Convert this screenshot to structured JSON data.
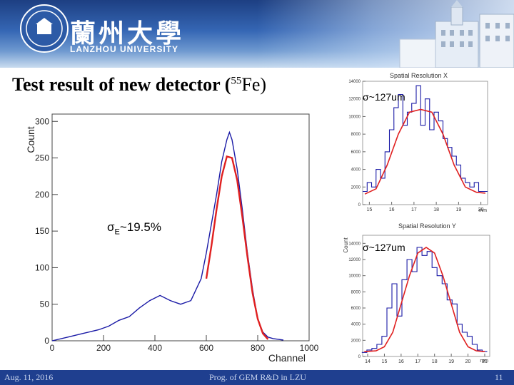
{
  "header": {
    "university_cn": "蘭州大學",
    "university_en": "LANZHOU UNIVERSITY"
  },
  "slide": {
    "title_text": "Test result of new detector (",
    "title_iso_sup": "55",
    "title_iso_elem": "Fe)"
  },
  "spectrum": {
    "ylabel": "Count",
    "xlabel": "Channel",
    "resolution_label": "σ",
    "resolution_sub": "E",
    "resolution_value": "~19.5%"
  },
  "spatial_x": {
    "title": "Spatial Resolution X",
    "annotation": "σ~127um",
    "xunit": "mm"
  },
  "spatial_y": {
    "title": "Spatial Resolution Y",
    "annotation": "σ~127um",
    "ylabel": "Count",
    "xunit": "mm"
  },
  "footer": {
    "date": "Aug. 11, 2016",
    "center": "Prog. of GEM R&D in LZU",
    "page": "11"
  },
  "colors": {
    "hist": "#1a1aa6",
    "fit": "#e02020",
    "banner": "#2a55a0",
    "footer": "#1f3f8f"
  },
  "chart_data": [
    {
      "type": "line",
      "title": "",
      "xlabel": "Channel",
      "ylabel": "Count",
      "xlim": [
        0,
        1000
      ],
      "ylim": [
        0,
        310
      ],
      "xticks": [
        "0",
        "200",
        "400",
        "600",
        "800",
        "1000"
      ],
      "yticks": [
        "0",
        "50",
        "100",
        "150",
        "200",
        "250",
        "300"
      ],
      "series": [
        {
          "x": [
            0,
            60,
            120,
            180,
            220,
            260,
            300,
            340,
            380,
            420,
            460,
            500,
            540,
            560,
            580,
            600,
            620,
            640,
            660,
            680,
            690,
            700,
            720,
            740,
            760,
            780,
            800,
            820,
            840,
            860,
            880,
            900
          ],
          "values": [
            0,
            5,
            10,
            15,
            20,
            28,
            33,
            45,
            55,
            62,
            55,
            50,
            55,
            70,
            85,
            120,
            160,
            200,
            245,
            275,
            285,
            275,
            235,
            180,
            120,
            70,
            30,
            12,
            5,
            3,
            2,
            1
          ]
        },
        {
          "x": [
            600,
            620,
            640,
            660,
            680,
            700,
            720,
            740,
            760,
            780,
            800,
            820,
            840
          ],
          "values": [
            85,
            130,
            180,
            225,
            252,
            250,
            220,
            170,
            115,
            65,
            30,
            10,
            2
          ]
        }
      ],
      "annotation": "σE~19.5%"
    },
    {
      "type": "bar",
      "title": "Spatial Resolution X",
      "xunit": "mm",
      "xticks": [
        "15",
        "16",
        "17",
        "18",
        "19",
        "20"
      ],
      "yticks": [
        "0",
        "2000",
        "4000",
        "6000",
        "8000",
        "10000",
        "12000",
        "14000"
      ],
      "xlim": [
        14.7,
        20.3
      ],
      "ylim": [
        0,
        14000
      ],
      "x": [
        14.8,
        15.0,
        15.2,
        15.4,
        15.6,
        15.8,
        16.0,
        16.2,
        16.4,
        16.6,
        16.8,
        17.0,
        17.2,
        17.4,
        17.6,
        17.8,
        18.0,
        18.2,
        18.4,
        18.6,
        18.8,
        19.0,
        19.2,
        19.4,
        19.6,
        19.8,
        20.0,
        20.2
      ],
      "values": [
        1500,
        2500,
        2000,
        4000,
        3000,
        6000,
        8500,
        11000,
        12500,
        9000,
        10500,
        11500,
        13500,
        9000,
        12000,
        8500,
        10500,
        9500,
        7500,
        6500,
        5500,
        4500,
        3000,
        2500,
        2000,
        2500,
        1500,
        1500
      ],
      "fit_x": [
        14.8,
        15.3,
        15.8,
        16.3,
        16.8,
        17.3,
        17.8,
        18.3,
        18.8,
        19.3,
        19.8,
        20.2
      ],
      "fit_values": [
        1200,
        1800,
        4500,
        8000,
        10500,
        10800,
        10500,
        8000,
        4500,
        2000,
        1400,
        1300
      ],
      "annotation": "σ~127um"
    },
    {
      "type": "bar",
      "title": "Spatial Resolution Y",
      "ylabel": "Count",
      "xunit": "mm",
      "xticks": [
        "14",
        "15",
        "16",
        "17",
        "18",
        "19",
        "20",
        "21"
      ],
      "yticks": [
        "0",
        "2000",
        "4000",
        "6000",
        "8000",
        "10000",
        "12000",
        "14000"
      ],
      "xlim": [
        13.7,
        21.3
      ],
      "ylim": [
        0,
        15000
      ],
      "x": [
        13.8,
        14.1,
        14.4,
        14.7,
        15.0,
        15.3,
        15.6,
        15.9,
        16.2,
        16.5,
        16.8,
        17.1,
        17.4,
        17.7,
        18.0,
        18.3,
        18.6,
        18.9,
        19.2,
        19.5,
        19.8,
        20.1,
        20.4,
        20.7,
        21.0
      ],
      "values": [
        500,
        800,
        1000,
        1500,
        2500,
        6000,
        9000,
        5000,
        9500,
        12000,
        10500,
        13500,
        12500,
        13000,
        11000,
        10000,
        9000,
        7000,
        6500,
        4000,
        3000,
        2500,
        1500,
        800,
        600
      ],
      "fit_x": [
        13.8,
        14.5,
        15.0,
        15.5,
        16.0,
        16.5,
        17.0,
        17.5,
        18.0,
        18.5,
        19.0,
        19.5,
        20.0,
        20.5,
        21.0
      ],
      "fit_values": [
        600,
        700,
        1200,
        3000,
        6500,
        10000,
        12800,
        13500,
        12800,
        10000,
        6500,
        3000,
        1200,
        700,
        600
      ],
      "annotation": "σ~127um"
    }
  ]
}
